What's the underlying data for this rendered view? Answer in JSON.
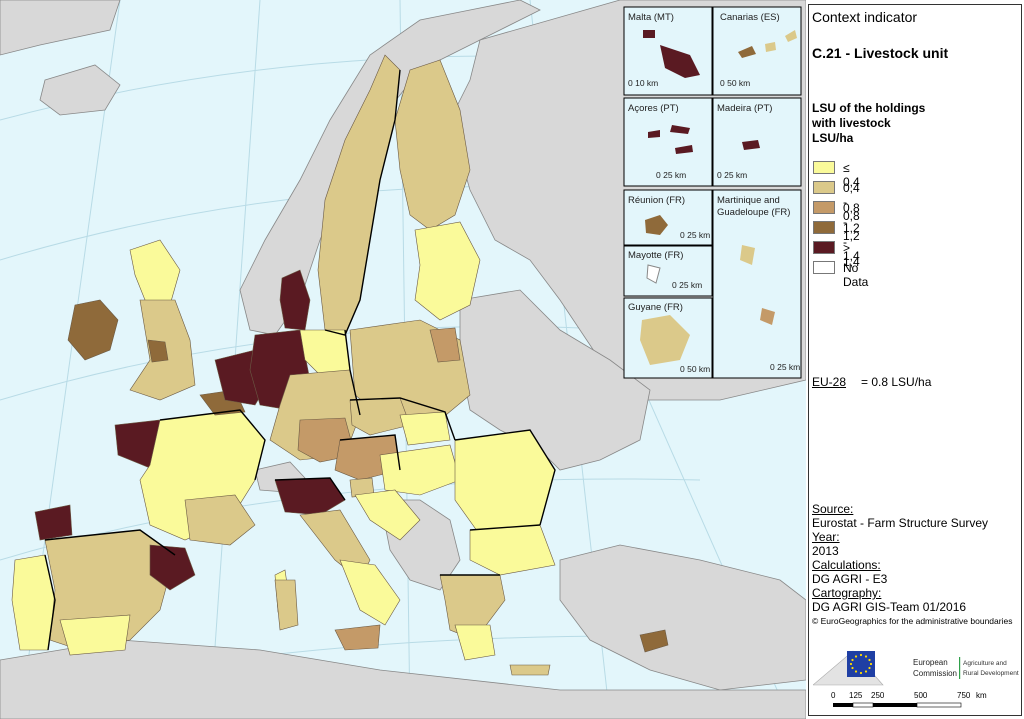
{
  "panel": {
    "context": "Context indicator",
    "indicator": "C.21 - Livestock unit",
    "legend_title": [
      "LSU of the holdings",
      "with livestock",
      "LSU/ha"
    ],
    "legend": [
      {
        "label": "≤ 0,4",
        "color": "#fafa9a"
      },
      {
        "label": "0,4 - 0,8",
        "color": "#dbc98a"
      },
      {
        "label": "0,8 - 1,2",
        "color": "#c49a68"
      },
      {
        "label": "1,2 - 1,4",
        "color": "#8f6a3a"
      },
      {
        "label": "> 1,4",
        "color": "#5a1a22"
      },
      {
        "label": "No Data",
        "color": "#ffffff"
      }
    ],
    "eu_label": "EU-28",
    "eu_value": "= 0.8 LSU/ha",
    "source_h": "Source:",
    "source_v": "Eurostat - Farm Structure Survey",
    "year_h": "Year:",
    "year_v": "2013",
    "calc_h": "Calculations:",
    "calc_v": "DG AGRI - E3",
    "carto_h": "Cartography:",
    "carto_v": "DG AGRI GIS-Team 01/2016",
    "copyright": "© EuroGeographics for the administrative boundaries",
    "ec_line1": "European",
    "ec_line2": "Commission",
    "dg_line1": "Agriculture and",
    "dg_line2": "Rural Development",
    "scale_labels": [
      "0",
      "125",
      "250",
      "500",
      "750",
      "km"
    ]
  },
  "insets": {
    "malta": {
      "title": "Malta (MT)",
      "scale": "0   10 km"
    },
    "canarias": {
      "title": "Canarias (ES)",
      "scale": "0 50 km"
    },
    "acores": {
      "title": "Açores (PT)",
      "scale": "0 25 km"
    },
    "madeira": {
      "title": "Madeira (PT)",
      "scale": "0 25 km"
    },
    "reunion": {
      "title": "Réunion (FR)",
      "scale": "0 25 km"
    },
    "martinique_1": "Martinique and",
    "martinique_2": "Guadeloupe (FR)",
    "martinique_scale": "0 25 km",
    "mayotte": {
      "title": "Mayotte (FR)",
      "scale": "0  25 km"
    },
    "guyane": {
      "title": "Guyane (FR)",
      "scale": "0 50 km"
    }
  },
  "colors": {
    "sea": "#e3f6fb",
    "nonEU": "#d8d8d8",
    "border": "#000000",
    "grid": "#b8dbe6"
  }
}
